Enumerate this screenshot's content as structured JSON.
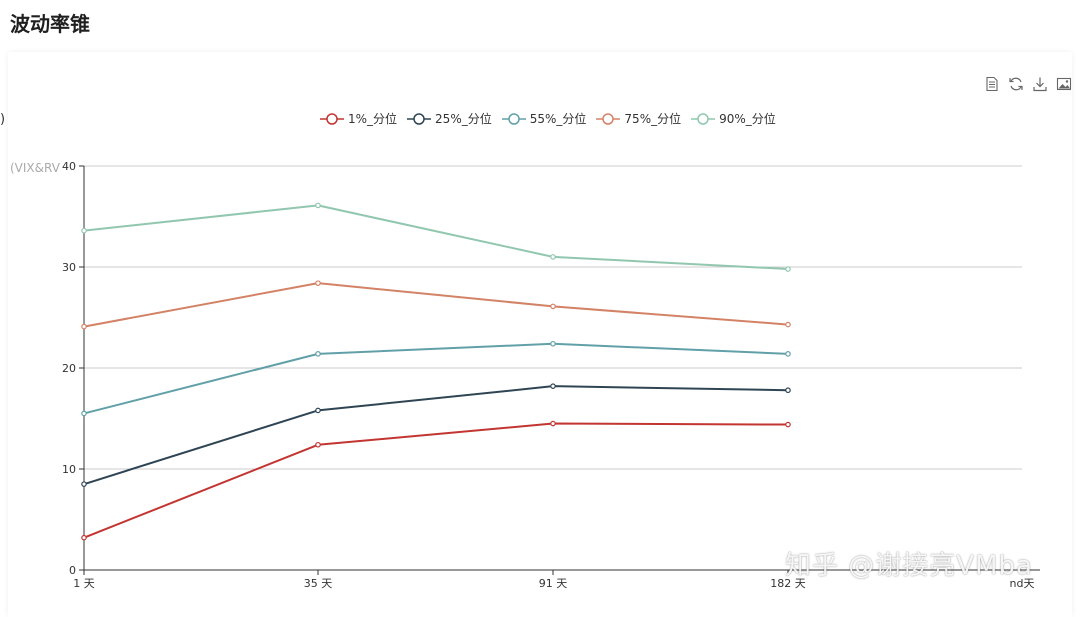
{
  "page": {
    "title": "波动率锥"
  },
  "fragments": {
    "left_paren": ")",
    "x_axis_end": "nd天"
  },
  "toolbox": {
    "icons": [
      "data-view-icon",
      "restore-icon",
      "download-icon",
      "save-image-icon"
    ]
  },
  "watermark": "知乎 @谢接亮VMba",
  "chart_data": {
    "type": "line",
    "title": "",
    "ylabel": "(VIX&RV",
    "xlabel": "",
    "categories": [
      "1 天",
      "35 天",
      "91 天",
      "182 天"
    ],
    "ylim": [
      0,
      40
    ],
    "yticks": [
      0,
      10,
      20,
      30,
      40
    ],
    "grid": true,
    "legend_position": "top-center",
    "series": [
      {
        "name": "1%_分位",
        "color": "#c23531",
        "values": [
          3.2,
          12.4,
          14.5,
          14.4
        ]
      },
      {
        "name": "25%_分位",
        "color": "#2f4554",
        "values": [
          8.5,
          15.8,
          18.2,
          17.8
        ]
      },
      {
        "name": "55%_分位",
        "color": "#61a0a8",
        "values": [
          15.5,
          21.4,
          22.4,
          21.4
        ]
      },
      {
        "name": "75%_分位",
        "color": "#d48265",
        "values": [
          24.1,
          28.4,
          26.1,
          24.3
        ]
      },
      {
        "name": "90%_分位",
        "color": "#91c7ae",
        "values": [
          33.6,
          36.1,
          31.0,
          29.8
        ]
      }
    ]
  }
}
